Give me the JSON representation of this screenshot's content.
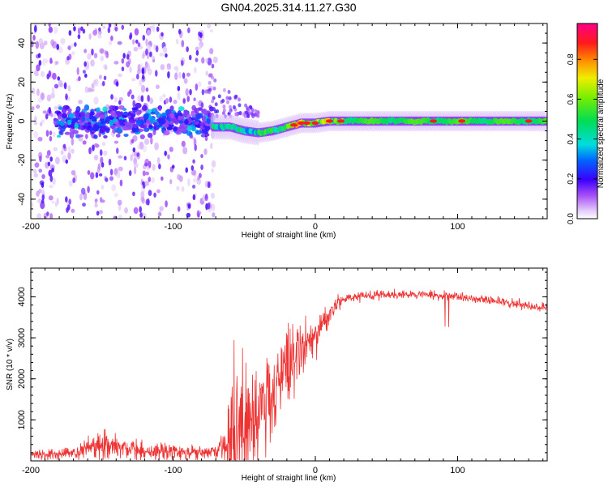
{
  "title": "GN04.2025.314.11.27.G30",
  "chart_data": [
    {
      "type": "heatmap",
      "name": "spectrogram",
      "xlabel": "Height of straight line (km)",
      "ylabel": "Frequency (Hz)",
      "xlim": [
        -200,
        163
      ],
      "ylim": [
        -50,
        50
      ],
      "xticks": [
        "-200",
        "-100",
        "0",
        "100"
      ],
      "xtick_values": [
        -200,
        -100,
        0,
        100
      ],
      "yticks": [
        "-40",
        "-20",
        "0",
        "20",
        "40"
      ],
      "ytick_values": [
        -40,
        -20,
        0,
        20,
        40
      ],
      "colorbar": {
        "label": "Normalized spectral amplitude",
        "range": [
          0,
          0.98
        ],
        "ticks": [
          "0.0",
          "0.2",
          "0.4",
          "0.6",
          "0.8"
        ],
        "tick_values": [
          0.0,
          0.2,
          0.4,
          0.6,
          0.8
        ]
      },
      "features": {
        "noise_region_x": [
          -200,
          -72
        ],
        "noise_band_center_hz": 0,
        "signal_start_km": -72,
        "signal_center_track": [
          [
            -72,
            -3
          ],
          [
            -60,
            -3
          ],
          [
            -50,
            -5
          ],
          [
            -40,
            -6
          ],
          [
            -30,
            -5
          ],
          [
            -20,
            -3
          ],
          [
            -10,
            -1
          ],
          [
            0,
            -1
          ],
          [
            10,
            0
          ],
          [
            20,
            0
          ],
          [
            163,
            0
          ]
        ],
        "peak_locations_km": [
          -15,
          -10,
          -6,
          0,
          10,
          18,
          83,
          103,
          150
        ]
      }
    },
    {
      "type": "line",
      "name": "snr",
      "xlabel": "Height of straight line (km)",
      "ylabel": "SNR (10 * v/v)",
      "xlim": [
        -200,
        163
      ],
      "ylim": [
        0,
        4700
      ],
      "xticks": [
        "-200",
        "-100",
        "0",
        "100"
      ],
      "xtick_values": [
        -200,
        -100,
        0,
        100
      ],
      "yticks": [
        "1000",
        "2000",
        "3000",
        "4000"
      ],
      "ytick_values": [
        1000,
        2000,
        3000,
        4000
      ],
      "color": "#ee3333",
      "envelope": [
        [
          -200,
          150
        ],
        [
          -170,
          180
        ],
        [
          -150,
          420
        ],
        [
          -135,
          300
        ],
        [
          -120,
          230
        ],
        [
          -100,
          240
        ],
        [
          -80,
          180
        ],
        [
          -70,
          220
        ],
        [
          -62,
          400
        ],
        [
          -55,
          750
        ],
        [
          -40,
          1200
        ],
        [
          -30,
          1600
        ],
        [
          -20,
          2200
        ],
        [
          -12,
          2700
        ],
        [
          -5,
          2900
        ],
        [
          0,
          3050
        ],
        [
          5,
          3300
        ],
        [
          10,
          3600
        ],
        [
          15,
          3850
        ],
        [
          25,
          4000
        ],
        [
          50,
          4050
        ],
        [
          80,
          4060
        ],
        [
          100,
          4000
        ],
        [
          130,
          3880
        ],
        [
          163,
          3720
        ]
      ]
    }
  ]
}
